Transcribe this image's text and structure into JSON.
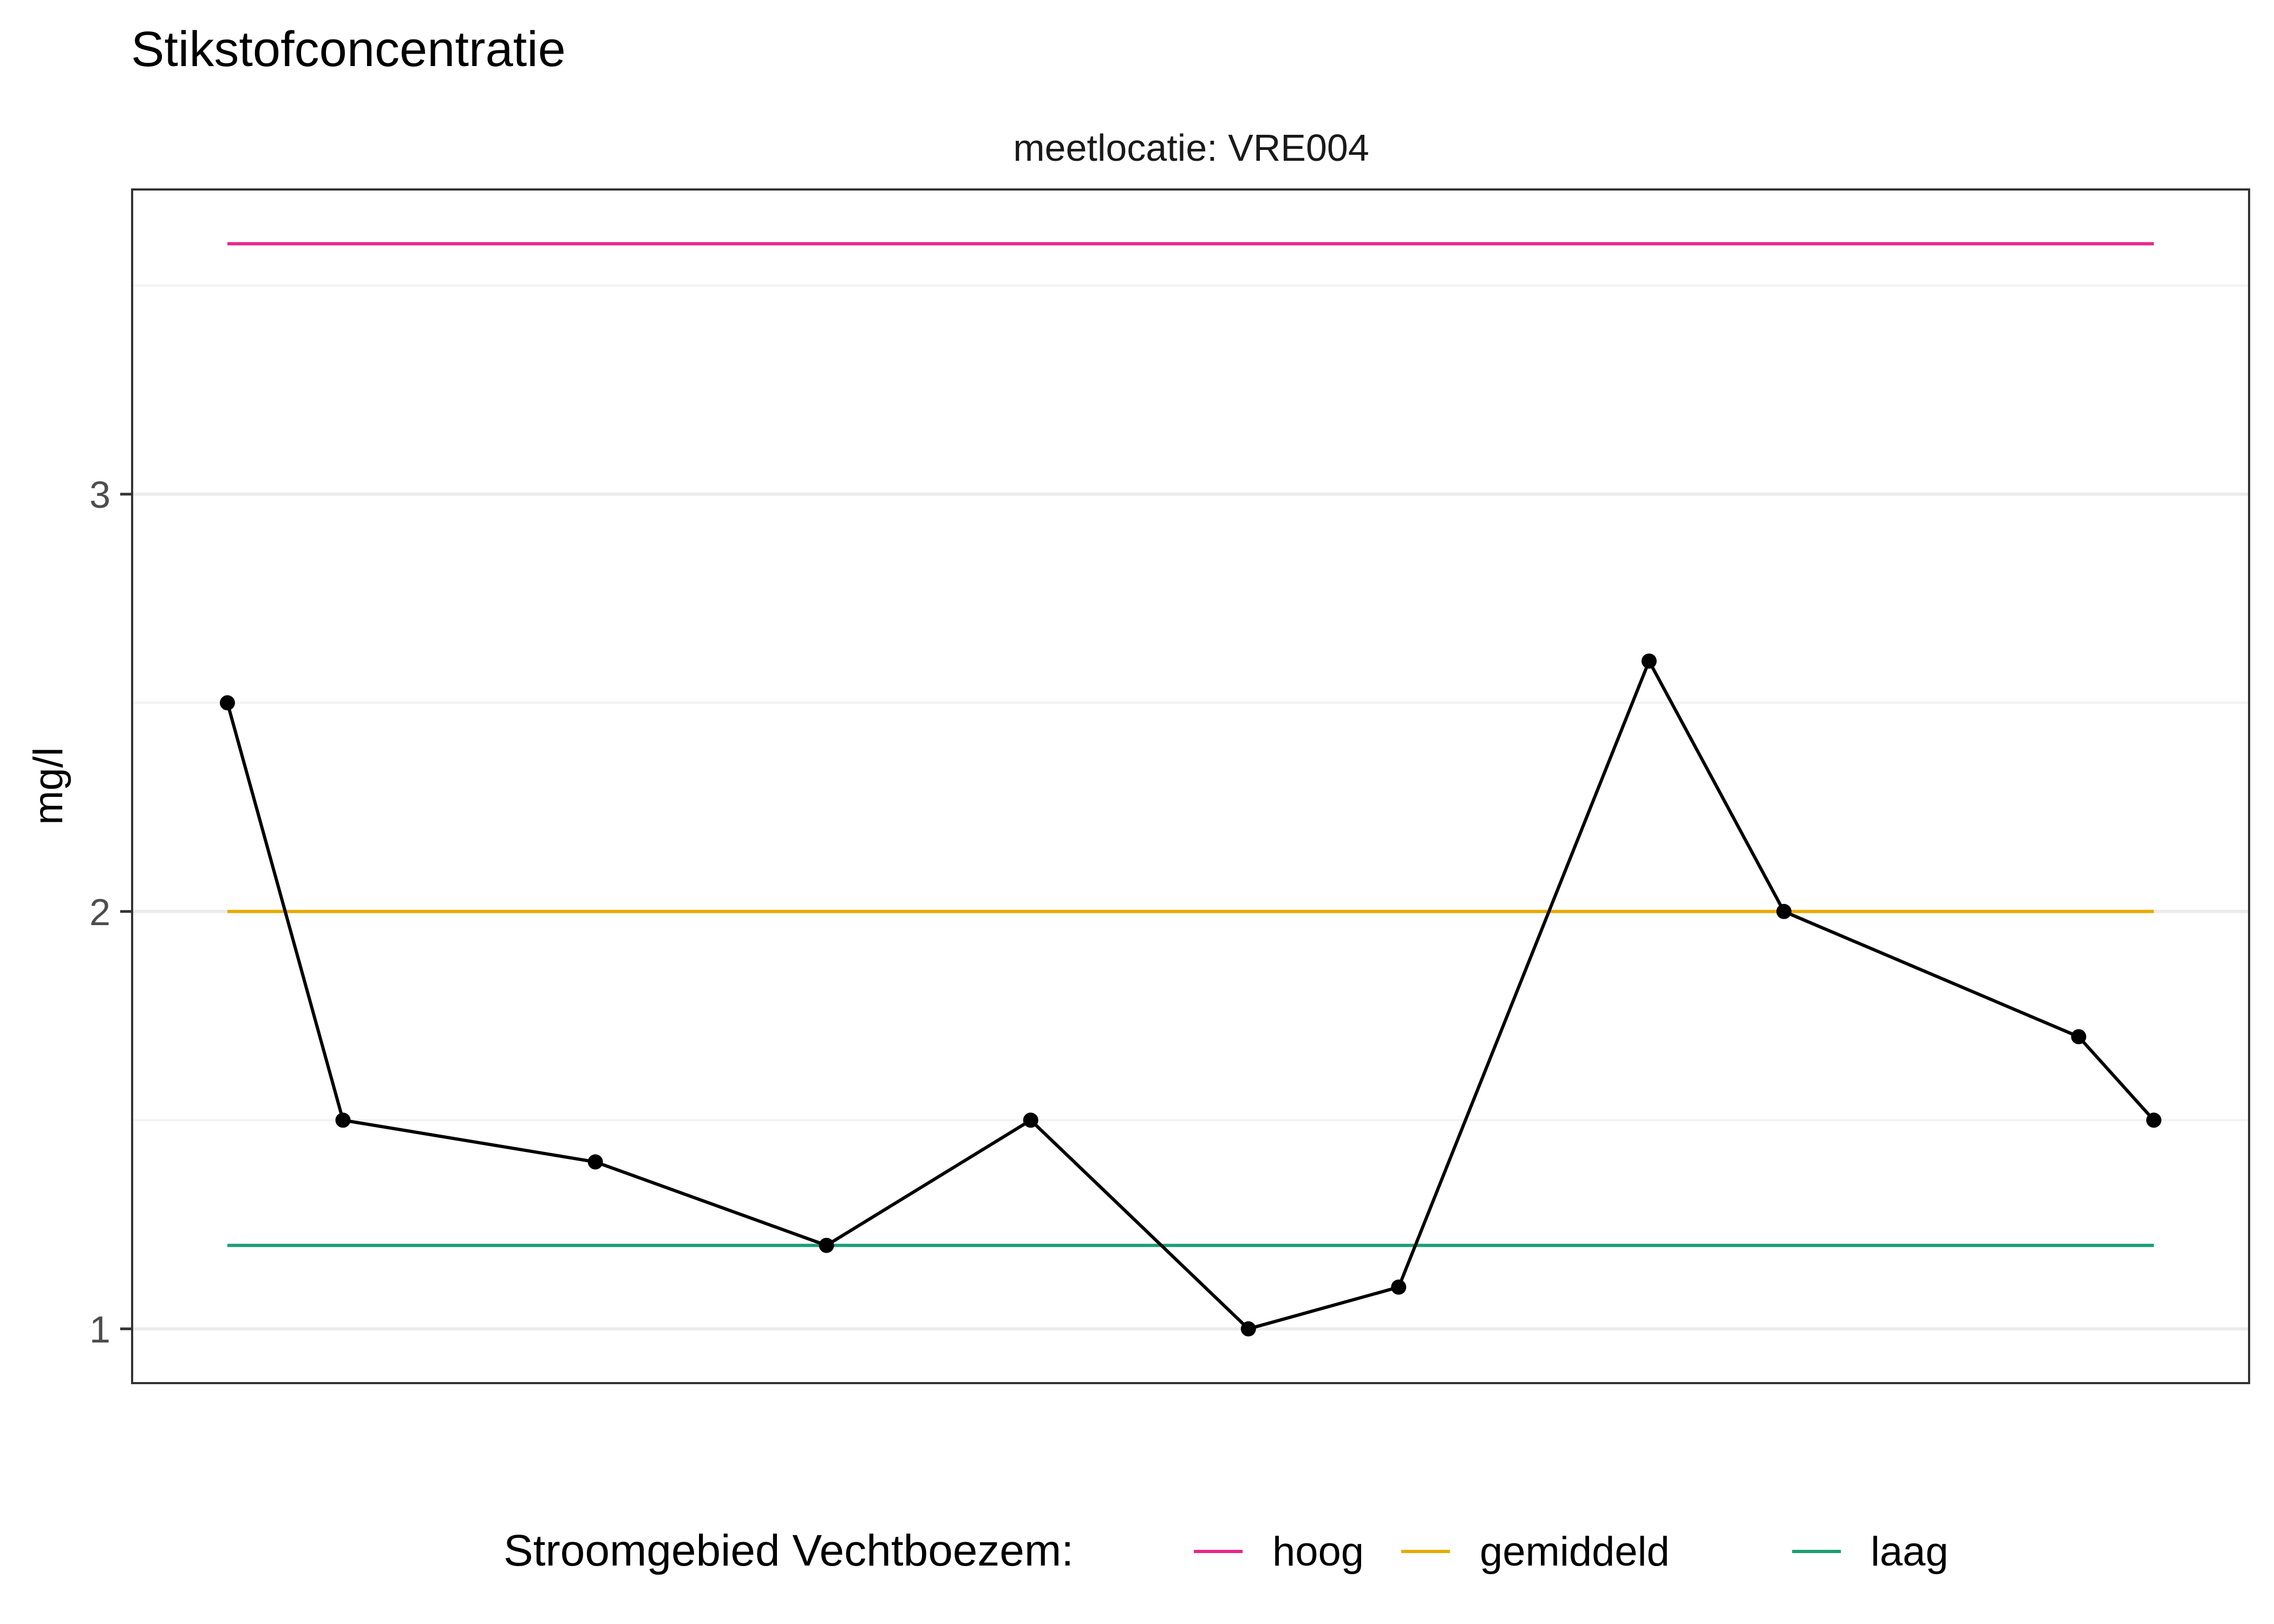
{
  "chart_data": {
    "type": "line",
    "title": "Stikstofconcentratie",
    "facet_label": "meetlocatie: VRE004",
    "xlabel": "",
    "ylabel": "mg/l",
    "ylim": [
      0.87,
      3.73
    ],
    "yticks": [
      1,
      2,
      3
    ],
    "ytick_labels": [
      "1",
      "2",
      "3"
    ],
    "xlim": [
      -0.05,
      1.05
    ],
    "grid": true,
    "series": [
      {
        "values": [
          {
            "x": 0.0,
            "y": 2.5
          },
          {
            "x": 0.06,
            "y": 1.5
          },
          {
            "x": 0.191,
            "y": 1.4
          },
          {
            "x": 0.311,
            "y": 1.2
          },
          {
            "x": 0.417,
            "y": 1.5
          },
          {
            "x": 0.53,
            "y": 1.0
          },
          {
            "x": 0.608,
            "y": 1.1
          },
          {
            "x": 0.738,
            "y": 2.6
          },
          {
            "x": 0.808,
            "y": 2.0
          },
          {
            "x": 0.961,
            "y": 1.7
          },
          {
            "x": 1.0,
            "y": 1.5
          }
        ],
        "color": "#000000"
      }
    ],
    "reference_lines": [
      {
        "name": "hoog",
        "y": 3.6,
        "color": "#E7298A"
      },
      {
        "name": "gemiddeld",
        "y": 2.0,
        "color": "#E6AB02"
      },
      {
        "name": "laag",
        "y": 1.2,
        "color": "#1B9E77"
      }
    ],
    "legend": {
      "title": "Stroomgebied Vechtboezem:",
      "position": "bottom",
      "items": [
        "hoog",
        "gemiddeld",
        "laag"
      ]
    }
  }
}
